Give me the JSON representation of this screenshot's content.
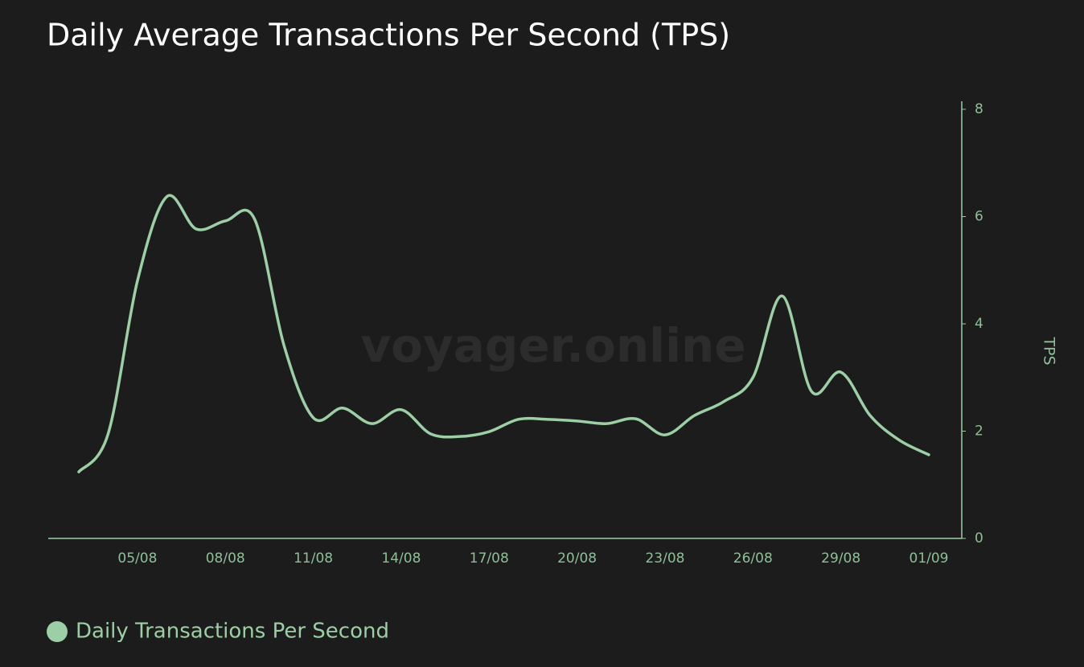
{
  "chart_data": {
    "type": "line",
    "title": "Daily Average Transactions Per Second (TPS)",
    "watermark": "voyager.online",
    "y_label": "TPS",
    "categories": [
      null,
      null,
      "05/08",
      null,
      null,
      "08/08",
      null,
      null,
      "11/08",
      null,
      null,
      "14/08",
      null,
      null,
      "17/08",
      null,
      null,
      "20/08",
      null,
      null,
      "23/08",
      null,
      null,
      "26/08",
      null,
      null,
      "29/08",
      null,
      null,
      "01/09"
    ],
    "series": [
      {
        "name": "Daily Transactions Per Second",
        "color": "#9ccfa6",
        "values": [
          1.24,
          1.95,
          4.8,
          6.37,
          5.77,
          5.92,
          5.95,
          3.6,
          2.25,
          2.43,
          2.14,
          2.4,
          1.95,
          1.9,
          1.99,
          2.22,
          2.22,
          2.19,
          2.14,
          2.23,
          1.93,
          2.29,
          2.55,
          3.0,
          4.52,
          2.74,
          3.1,
          2.29,
          1.83,
          1.56
        ]
      }
    ],
    "ylim": [
      0,
      8
    ],
    "yticks": [
      0,
      2,
      4,
      6,
      8
    ],
    "y_axis_side": "right",
    "grid": false
  }
}
